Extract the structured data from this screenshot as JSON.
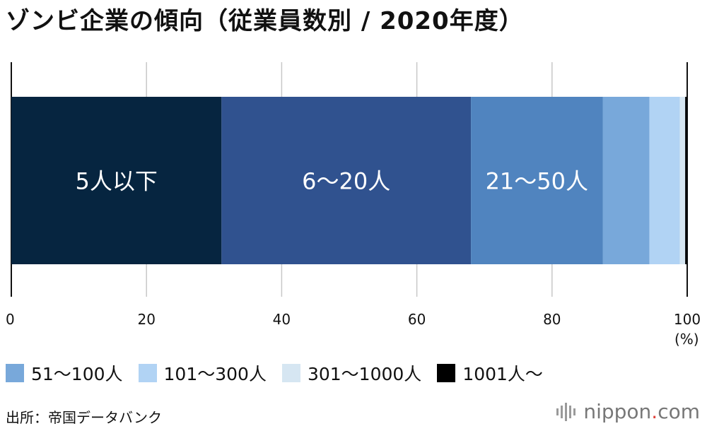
{
  "title": "ゾンビ企業の傾向（従業員数別 / 2020年度）",
  "chart_data": {
    "type": "bar",
    "orientation": "horizontal-stacked-100",
    "title": "ゾンビ企業の傾向（従業員数別 / 2020年度）",
    "unit_label": "(%)",
    "xlim": [
      0,
      100
    ],
    "x_ticks": [
      "0",
      "20",
      "40",
      "60",
      "80",
      "100"
    ],
    "grid": true,
    "legend_position": "bottom",
    "segments": [
      {
        "name": "5人以下",
        "value": 31.1,
        "color": "#062540",
        "label": "5人以下"
      },
      {
        "name": "6〜20人",
        "value": 36.9,
        "color": "#30528f",
        "label": "6〜20人"
      },
      {
        "name": "21〜50人",
        "value": 19.5,
        "color": "#5084bf",
        "label": "21〜50人"
      },
      {
        "name": "51〜100人",
        "value": 6.9,
        "color": "#78a8da",
        "label": ""
      },
      {
        "name": "101〜300人",
        "value": 4.5,
        "color": "#b1d3f4",
        "label": ""
      },
      {
        "name": "301〜1000人",
        "value": 0.8,
        "color": "#d6e6f2",
        "label": ""
      },
      {
        "name": "1001人〜",
        "value": 0.3,
        "color": "#000000",
        "label": ""
      }
    ]
  },
  "legend": [
    {
      "label": "51〜100人",
      "color": "#78a8da"
    },
    {
      "label": "101〜300人",
      "color": "#b1d3f4"
    },
    {
      "label": "301〜1000人",
      "color": "#d6e6f2"
    },
    {
      "label": "1001人〜",
      "color": "#000000"
    }
  ],
  "source": "出所：帝国データバンク",
  "logo": {
    "name": "nippon",
    "dot": ".",
    "suffix": "com"
  }
}
